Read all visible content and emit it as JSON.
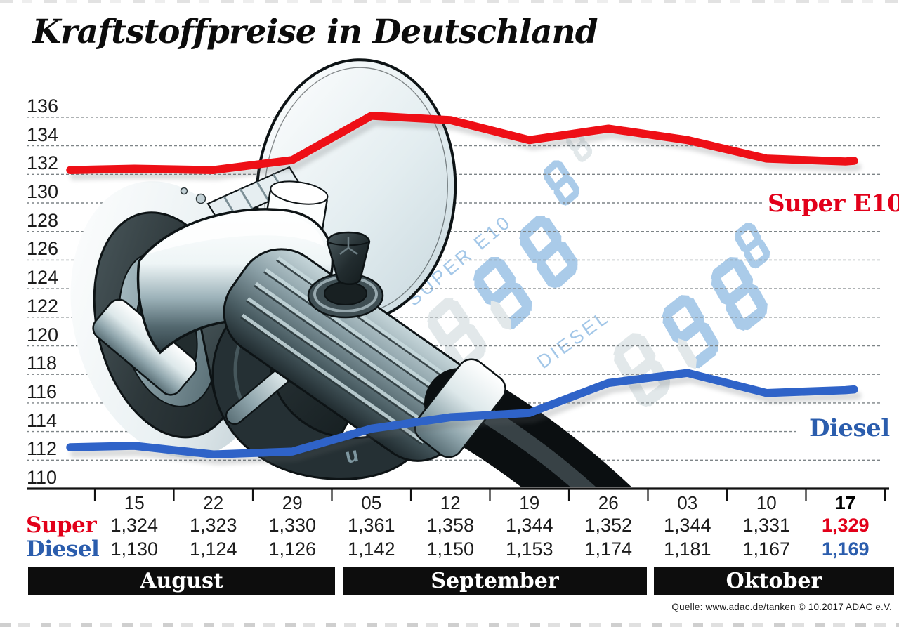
{
  "title": "Kraftstoffpreise in Deutschland",
  "source": "Quelle: www.adac.de/tanken   © 10.2017   ADAC e.V.",
  "series_labels": {
    "super": "Super E10",
    "diesel": "Diesel"
  },
  "watermark": {
    "super": "SUPER E10",
    "diesel": "DIESEL"
  },
  "colors": {
    "super_line": "#ee0f16",
    "super_text": "#e2001a",
    "diesel_line": "#2f63c8",
    "diesel_text": "#2b5dad",
    "grid": "#7d8487",
    "axis": "#111111",
    "month_bar": "#0d0d0d",
    "watermark_blue": "#a3c7e8",
    "watermark_ghost": "#e0e7e9"
  },
  "chart_data": {
    "type": "line",
    "title": "Kraftstoffpreise in Deutschland",
    "x_tick_labels": [
      "15",
      "22",
      "29",
      "05",
      "12",
      "19",
      "26",
      "03",
      "10",
      "17"
    ],
    "y_ticks": [
      136,
      134,
      132,
      130,
      128,
      126,
      124,
      122,
      120,
      118,
      116,
      114,
      112,
      110
    ],
    "ylim": [
      110,
      136
    ],
    "grid": true,
    "legend_position": "right-on-chart",
    "series": [
      {
        "name": "Super E10",
        "color": "#ee0f16",
        "values": [
          132.4,
          132.3,
          133.0,
          136.1,
          135.8,
          134.4,
          135.2,
          134.4,
          133.1,
          132.9
        ]
      },
      {
        "name": "Diesel",
        "color": "#2f63c8",
        "values": [
          113.0,
          112.4,
          112.6,
          114.2,
          115.0,
          115.3,
          117.4,
          118.1,
          116.7,
          116.9
        ]
      }
    ],
    "months": [
      {
        "label": "August",
        "columns": [
          "15",
          "22",
          "29"
        ]
      },
      {
        "label": "September",
        "columns": [
          "05",
          "12",
          "19",
          "26"
        ]
      },
      {
        "label": "Oktober",
        "columns": [
          "03",
          "10",
          "17"
        ]
      }
    ]
  },
  "table": {
    "dates": [
      "15",
      "22",
      "29",
      "05",
      "12",
      "19",
      "26",
      "03",
      "10",
      "17"
    ],
    "rows": [
      {
        "label": "Super",
        "color": "#e2001a",
        "values": [
          "1,324",
          "1,323",
          "1,330",
          "1,361",
          "1,358",
          "1,344",
          "1,352",
          "1,344",
          "1,331",
          "1,329"
        ]
      },
      {
        "label": "Diesel",
        "color": "#2b5dad",
        "values": [
          "1,130",
          "1,124",
          "1,126",
          "1,142",
          "1,150",
          "1,153",
          "1,174",
          "1,181",
          "1,167",
          "1,169"
        ]
      }
    ]
  }
}
